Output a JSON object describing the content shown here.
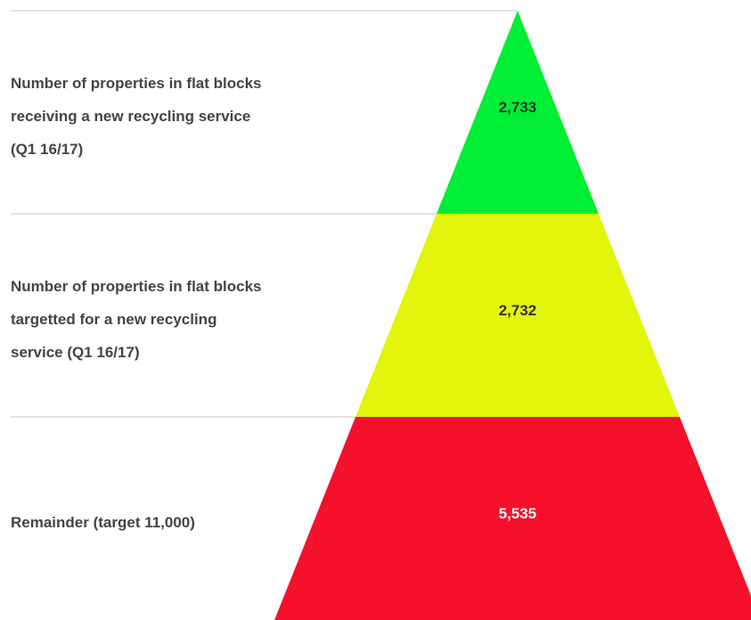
{
  "chart_data": {
    "type": "pyramid",
    "categories": [
      "Number of properties in flat blocks receiving a new recycling service (Q1 16/17)",
      "Number of properties in flat blocks targetted for a new recycling service (Q1 16/17)",
      "Remainder (target 11,000)"
    ],
    "values": [
      2733,
      2732,
      5535
    ],
    "value_labels": [
      "2,733",
      "2,732",
      "5,535"
    ],
    "colors": [
      "#00ee33",
      "#e2f50a",
      "#f5102c"
    ],
    "label_colors": [
      "#333333",
      "#333333",
      "#ffffff"
    ]
  }
}
